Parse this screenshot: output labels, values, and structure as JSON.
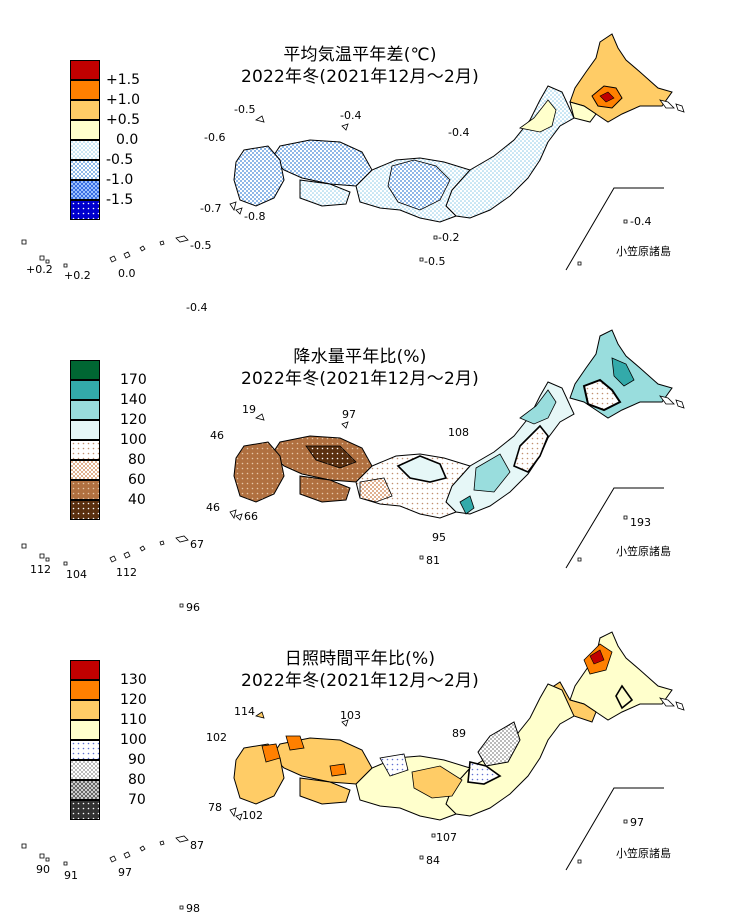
{
  "panels": [
    {
      "id": "temp",
      "title_line1": "平均気温平年差(℃)",
      "title_line2": "2022年冬(2021年12月～2月)",
      "legend": [
        {
          "label": "+1.5",
          "color": "#c00000",
          "pattern": "solid"
        },
        {
          "label": "+1.0",
          "color": "#ff8000",
          "pattern": "solid"
        },
        {
          "label": "+0.5",
          "color": "#ffcc66",
          "pattern": "solid"
        },
        {
          "label": "0.0",
          "color": "#ffffcc",
          "pattern": "solid"
        },
        {
          "label": "-0.5",
          "color": "#a8d8f0",
          "pattern": "dots-light"
        },
        {
          "label": "-1.0",
          "color": "#8fb8e8",
          "pattern": "check"
        },
        {
          "label": "-1.5",
          "color": "#4a7ee0",
          "pattern": "check-dark"
        },
        {
          "label": "",
          "color": "#0000cc",
          "pattern": "dots-white"
        }
      ],
      "station_values": [
        "-0.5",
        "-0.4",
        "-0.6",
        "-0.4",
        "-0.7",
        "-0.8",
        "-0.2",
        "-0.5",
        "+0.2",
        "+0.2",
        "0.0",
        "-0.5",
        "-0.4",
        "-0.4"
      ],
      "ogasawara_label": "小笠原諸島"
    },
    {
      "id": "precip",
      "title_line1": "降水量平年比(%)",
      "title_line2": "2022年冬(2021年12月～2月)",
      "legend": [
        {
          "label": "170",
          "color": "#006633",
          "pattern": "solid"
        },
        {
          "label": "140",
          "color": "#33aaaa",
          "pattern": "solid"
        },
        {
          "label": "120",
          "color": "#99dddd",
          "pattern": "solid"
        },
        {
          "label": "100",
          "color": "#e6f7f7",
          "pattern": "solid"
        },
        {
          "label": "80",
          "color": "#ffffff",
          "pattern": "dots-brown"
        },
        {
          "label": "60",
          "color": "#e8c8b0",
          "pattern": "check-brown"
        },
        {
          "label": "40",
          "color": "#b07040",
          "pattern": "solid-brown"
        },
        {
          "label": "",
          "color": "#5a3010",
          "pattern": "dots-dark"
        }
      ],
      "station_values": [
        "19",
        "97",
        "46",
        "108",
        "46",
        "66",
        "95",
        "81",
        "112",
        "104",
        "112",
        "67",
        "96",
        "193"
      ],
      "ogasawara_label": "小笠原諸島"
    },
    {
      "id": "sun",
      "title_line1": "日照時間平年比(%)",
      "title_line2": "2022年冬(2021年12月～2月)",
      "legend": [
        {
          "label": "130",
          "color": "#c00000",
          "pattern": "solid"
        },
        {
          "label": "120",
          "color": "#ff8000",
          "pattern": "solid"
        },
        {
          "label": "110",
          "color": "#ffcc66",
          "pattern": "solid"
        },
        {
          "label": "100",
          "color": "#ffffcc",
          "pattern": "solid"
        },
        {
          "label": "90",
          "color": "#ffffff",
          "pattern": "dots-blue"
        },
        {
          "label": "80",
          "color": "#dddddd",
          "pattern": "check-grey"
        },
        {
          "label": "70",
          "color": "#888888",
          "pattern": "check-dark-grey"
        },
        {
          "label": "",
          "color": "#333333",
          "pattern": "dots-black"
        }
      ],
      "station_values": [
        "114",
        "103",
        "102",
        "89",
        "78",
        "102",
        "107",
        "84",
        "90",
        "91",
        "97",
        "87",
        "98",
        "97"
      ],
      "ogasawara_label": "小笠原諸島"
    }
  ]
}
